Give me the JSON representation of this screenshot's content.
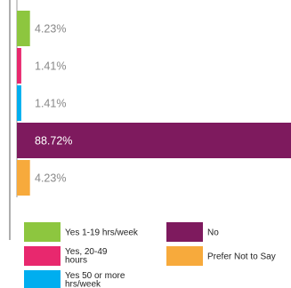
{
  "chart_data": {
    "type": "bar",
    "orientation": "horizontal",
    "xlim": [
      0,
      88.72
    ],
    "bars": [
      {
        "label": "Yes 1-19 hrs/week",
        "value": 4.23,
        "value_label": "4.23%",
        "color": "#8DC63F"
      },
      {
        "label": "Yes, 20-49 hours",
        "value": 1.41,
        "value_label": "1.41%",
        "color": "#E8286E"
      },
      {
        "label": "Yes 50 or more hrs/week",
        "value": 1.41,
        "value_label": "1.41%",
        "color": "#00AEEF"
      },
      {
        "label": "No",
        "value": 88.72,
        "value_label": "88.72%",
        "color": "#7E1A5E"
      },
      {
        "label": "Prefer Not to Say",
        "value": 4.23,
        "value_label": "4.23%",
        "color": "#F7AA3C"
      }
    ],
    "legend": [
      {
        "lines": [
          "Yes 1-19 hrs/week"
        ],
        "color": "#8DC63F"
      },
      {
        "lines": [
          "Yes, 20-49",
          "hours"
        ],
        "color": "#E8286E"
      },
      {
        "lines": [
          "Yes 50 or more",
          "hrs/week"
        ],
        "color": "#00AEEF"
      },
      {
        "lines": [
          "No"
        ],
        "color": "#7E1A5E"
      },
      {
        "lines": [
          "Prefer Not to Say"
        ],
        "color": "#F7AA3C"
      }
    ],
    "legend_placement": "bottom",
    "grid": false
  },
  "colors": {
    "axis": "#9B9B9B",
    "label_dark": "#888888",
    "label_light": "#ffffff"
  }
}
